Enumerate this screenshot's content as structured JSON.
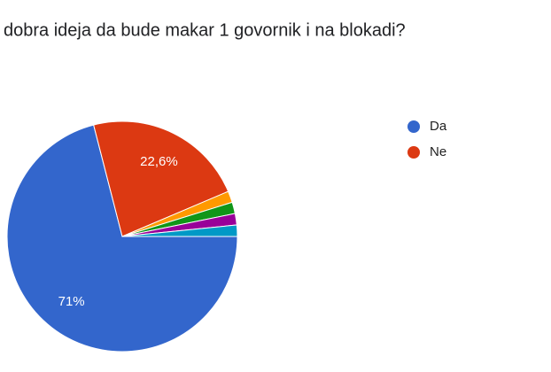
{
  "chart_data": {
    "type": "pie",
    "title": "dobra ideja da bude makar 1 govornik i na blokadi?",
    "categories": [
      "Da",
      "Ne",
      null,
      null,
      null,
      null
    ],
    "values": [
      71,
      22.6,
      1.6,
      1.6,
      1.6,
      1.6
    ],
    "value_labels": [
      "71%",
      "22,6%",
      null,
      null,
      null,
      null
    ],
    "colors": [
      "#3366cc",
      "#dc3912",
      "#ff9900",
      "#109618",
      "#990099",
      "#0099c6"
    ],
    "legend": "right"
  }
}
